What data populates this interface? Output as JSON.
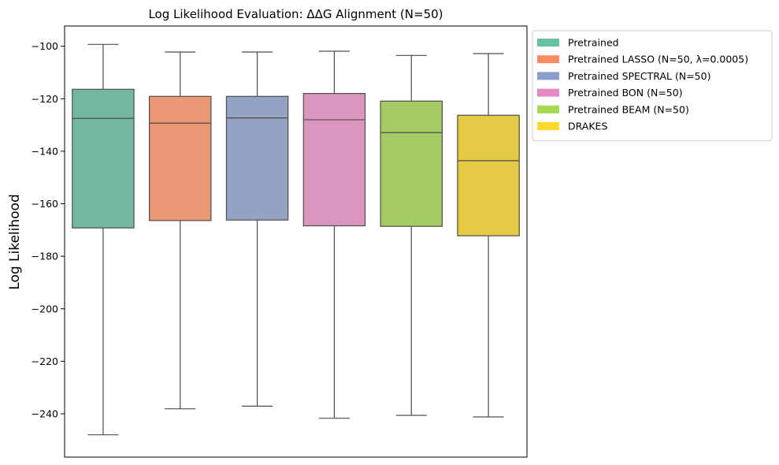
{
  "chart_data": {
    "type": "box",
    "title": "Log Likelihood Evaluation: ΔΔG Alignment (N=50)",
    "xlabel": "",
    "ylabel": "Log Likelihood",
    "ylim": [
      -256.5,
      -92.3
    ],
    "yticks": [
      -100,
      -120,
      -140,
      -160,
      -180,
      -200,
      -220,
      -240
    ],
    "ytick_labels": [
      "−100",
      "−120",
      "−140",
      "−160",
      "−180",
      "−200",
      "−220",
      "−240"
    ],
    "grid": false,
    "legend_position": "outside top-right",
    "series": [
      {
        "name": "Pretrained",
        "color": "#66c2a5",
        "fill": "#73b7a2",
        "whisker_low": -248.0,
        "q1": -169.2,
        "median": -127.5,
        "q3": -116.4,
        "whisker_high": -99.3
      },
      {
        "name": "Pretrained LASSO (N=50, λ=0.0005)",
        "color": "#fc8d62",
        "fill": "#e99774",
        "whisker_low": -238.1,
        "q1": -166.4,
        "median": -129.3,
        "q3": -119.1,
        "whisker_high": -102.2
      },
      {
        "name": "Pretrained SPECTRAL (N=50)",
        "color": "#8da0cb",
        "fill": "#94a3c3",
        "whisker_low": -237.1,
        "q1": -166.2,
        "median": -127.3,
        "q3": -119.1,
        "whisker_high": -102.2
      },
      {
        "name": "Pretrained BON (N=50)",
        "color": "#e78ac3",
        "fill": "#da96bf",
        "whisker_low": -241.7,
        "q1": -168.4,
        "median": -128.0,
        "q3": -118.0,
        "whisker_high": -101.9
      },
      {
        "name": "Pretrained BEAM (N=50)",
        "color": "#a6d854",
        "fill": "#a4ca65",
        "whisker_low": -240.6,
        "q1": -168.6,
        "median": -132.9,
        "q3": -120.9,
        "whisker_high": -103.5
      },
      {
        "name": "DRAKES",
        "color": "#ffd92f",
        "fill": "#e6c944",
        "whisker_low": -241.2,
        "q1": -172.2,
        "median": -143.6,
        "q3": -126.3,
        "whisker_high": -102.8
      }
    ]
  }
}
